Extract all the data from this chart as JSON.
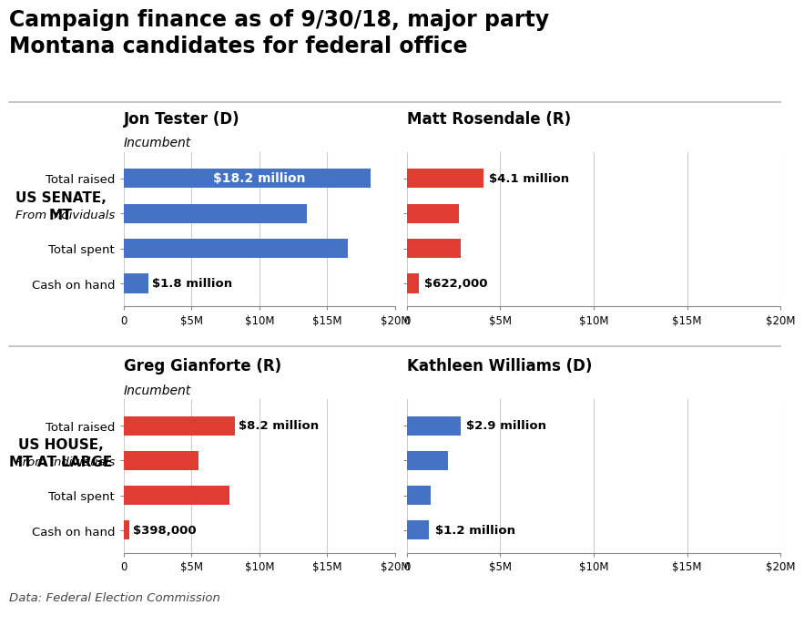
{
  "title": "Campaign finance as of 9/30/18, major party\nMontana candidates for federal office",
  "title_fontsize": 17,
  "footnote": "Data: Federal Election Commission",
  "background_color": "#ffffff",
  "categories": [
    "Total raised",
    "From individuals",
    "Total spent",
    "Cash on hand"
  ],
  "categories_italic": [
    false,
    true,
    false,
    false
  ],
  "panels": [
    {
      "race_label": "US SENATE,\nMT",
      "name": "Jon Tester (D)",
      "subtitle": "Incumbent",
      "color": "#4472C4",
      "values": [
        18.2,
        13.5,
        16.5,
        1.8
      ],
      "bar_labels": [
        "$18.2 million",
        null,
        null,
        "$1.8 million"
      ],
      "label_inside": [
        true,
        false,
        false,
        false
      ],
      "xlim": [
        0,
        20
      ],
      "xticks": [
        0,
        5,
        10,
        15,
        20
      ],
      "xticklabels": [
        "0",
        "$5M",
        "$10M",
        "$15M",
        "$20M"
      ]
    },
    {
      "race_label": null,
      "name": "Matt Rosendale (R)",
      "subtitle": null,
      "color": "#E03C31",
      "values": [
        4.1,
        2.8,
        2.9,
        0.622
      ],
      "bar_labels": [
        "$4.1 million",
        null,
        null,
        "$622,000"
      ],
      "label_inside": [
        false,
        false,
        false,
        false
      ],
      "xlim": [
        0,
        20
      ],
      "xticks": [
        0,
        5,
        10,
        15,
        20
      ],
      "xticklabels": [
        "0",
        "$5M",
        "$10M",
        "$15M",
        "$20M"
      ]
    },
    {
      "race_label": "US HOUSE,\nMT AT LARGE",
      "name": "Greg Gianforte (R)",
      "subtitle": "Incumbent",
      "color": "#E03C31",
      "values": [
        8.2,
        5.5,
        7.8,
        0.398
      ],
      "bar_labels": [
        "$8.2 million",
        null,
        null,
        "$398,000"
      ],
      "label_inside": [
        false,
        false,
        false,
        false
      ],
      "xlim": [
        0,
        20
      ],
      "xticks": [
        0,
        5,
        10,
        15,
        20
      ],
      "xticklabels": [
        "0",
        "$5M",
        "$10M",
        "$15M",
        "$20M"
      ]
    },
    {
      "race_label": null,
      "name": "Kathleen Williams (D)",
      "subtitle": null,
      "color": "#4472C4",
      "values": [
        2.9,
        2.2,
        1.3,
        1.2
      ],
      "bar_labels": [
        "$2.9 million",
        null,
        null,
        "$1.2 million"
      ],
      "label_inside": [
        false,
        false,
        false,
        false
      ],
      "xlim": [
        0,
        20
      ],
      "xticks": [
        0,
        5,
        10,
        15,
        20
      ],
      "xticklabels": [
        "0",
        "$5M",
        "$10M",
        "$15M",
        "$20M"
      ]
    }
  ],
  "divider_color": "#bbbbbb",
  "tick_color": "#888888",
  "gridline_color": "#cccccc",
  "bar_height": 0.55
}
